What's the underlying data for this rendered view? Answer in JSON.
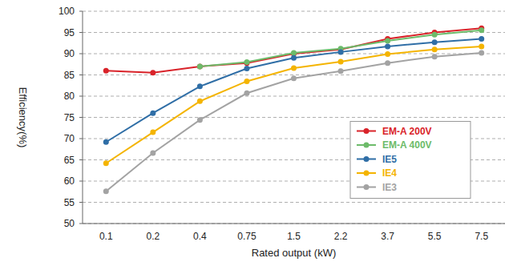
{
  "chart_data": {
    "type": "line",
    "x_label": "Rated output (kW)",
    "y_label": "Efficiency(%)",
    "categories": [
      "0.1",
      "0.2",
      "0.4",
      "0.75",
      "1.5",
      "2.2",
      "3.7",
      "5.5",
      "7.5"
    ],
    "series": [
      {
        "name": "EM-A 200V",
        "color": "#d9232a",
        "values": [
          86.0,
          85.5,
          87.0,
          87.8,
          90.0,
          91.0,
          93.5,
          95.0,
          96.0
        ]
      },
      {
        "name": "EM-A 400V",
        "color": "#6dbb6a",
        "values": [
          null,
          null,
          87.0,
          88.0,
          90.2,
          91.2,
          93.0,
          94.5,
          95.5
        ]
      },
      {
        "name": "IE5",
        "color": "#2f6ea6",
        "values": [
          69.2,
          76.0,
          82.3,
          86.5,
          89.0,
          90.4,
          91.7,
          92.7,
          93.5
        ]
      },
      {
        "name": "IE4",
        "color": "#f4b400",
        "values": [
          64.2,
          71.5,
          78.8,
          83.5,
          86.6,
          88.1,
          89.9,
          91.0,
          91.7
        ]
      },
      {
        "name": "IE3",
        "color": "#a3a3a3",
        "values": [
          57.6,
          66.6,
          74.4,
          80.7,
          84.2,
          85.9,
          87.8,
          89.3,
          90.2
        ]
      }
    ],
    "ylim": [
      50,
      100
    ],
    "yticks": [
      50,
      55,
      60,
      65,
      70,
      75,
      80,
      85,
      90,
      95,
      100
    ],
    "grid": true,
    "legend": "right",
    "marker": "circle"
  }
}
